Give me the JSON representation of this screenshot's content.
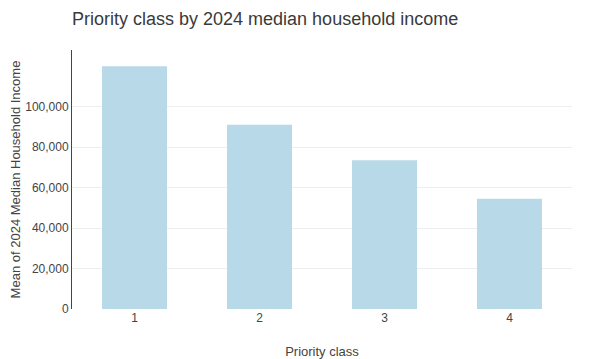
{
  "chart_data": {
    "type": "bar",
    "title": "Priority class by 2024 median household income",
    "xlabel": "Priority class",
    "ylabel": "Mean of 2024 Median Household Income",
    "categories": [
      "1",
      "2",
      "3",
      "4"
    ],
    "values": [
      120000,
      91000,
      73500,
      54500
    ],
    "color": "#b8d9e8",
    "ylim": [
      0,
      128000
    ],
    "yticks": [
      0,
      {
        "value": 20000,
        "label": "20,000"
      },
      {
        "value": 40000,
        "label": "40,000"
      },
      {
        "value": 60000,
        "label": "60,000"
      },
      {
        "value": 80000,
        "label": "80,000"
      },
      {
        "value": 100000,
        "label": "100,000"
      }
    ],
    "grid": true
  }
}
